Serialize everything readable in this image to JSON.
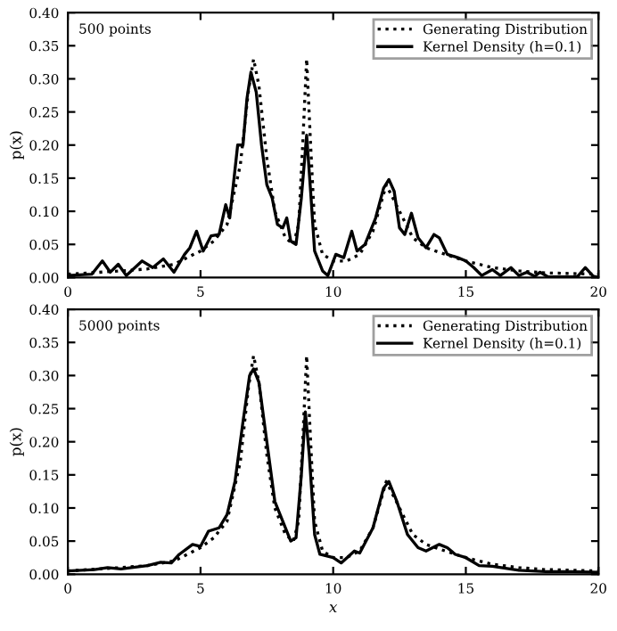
{
  "chart_data": [
    {
      "type": "line",
      "ylabel": "p(x)",
      "annotations": [
        "500 points"
      ],
      "legend": "top right",
      "xlim": [
        0,
        20
      ],
      "ylim": [
        0,
        0.4
      ],
      "xticks": [
        0,
        5,
        10,
        15,
        20
      ],
      "yticks": [
        {
          "value": 0,
          "label": "0.00"
        },
        {
          "value": 0.05,
          "label": "0.05"
        },
        {
          "value": 0.1,
          "label": "0.10"
        },
        {
          "value": 0.15,
          "label": "0.15"
        },
        {
          "value": 0.2,
          "label": "0.20"
        },
        {
          "value": 0.25,
          "label": "0.25"
        },
        {
          "value": 0.3,
          "label": "0.30"
        },
        {
          "value": 0.35,
          "label": "0.35"
        },
        {
          "value": 0.4,
          "label": "0.40"
        }
      ],
      "series": [
        {
          "name": "Generating Distribution",
          "color": "#000000",
          "line_style": "dotted",
          "x": [
            0,
            2,
            3,
            4,
            5,
            5.5,
            6,
            6.5,
            6.8,
            7.0,
            7.2,
            7.5,
            7.8,
            8.2,
            8.5,
            8.7,
            8.85,
            9.0,
            9.15,
            9.3,
            9.6,
            10,
            10.5,
            11,
            11.5,
            12,
            12.5,
            13,
            13.5,
            14,
            15,
            16,
            17,
            18,
            20
          ],
          "values": [
            0.005,
            0.01,
            0.013,
            0.02,
            0.04,
            0.055,
            0.08,
            0.17,
            0.28,
            0.33,
            0.29,
            0.18,
            0.1,
            0.06,
            0.05,
            0.08,
            0.2,
            0.33,
            0.2,
            0.08,
            0.035,
            0.025,
            0.025,
            0.035,
            0.07,
            0.14,
            0.1,
            0.06,
            0.045,
            0.038,
            0.025,
            0.015,
            0.01,
            0.007,
            0.005
          ]
        },
        {
          "name": "Kernel Density (h=0.1)",
          "color": "#000000",
          "line_style": "solid",
          "x": [
            0,
            0.9,
            1.3,
            1.6,
            1.9,
            2.2,
            2.8,
            3.2,
            3.6,
            4.0,
            4.4,
            4.6,
            4.85,
            5.1,
            5.4,
            5.7,
            5.95,
            6.1,
            6.4,
            6.6,
            6.75,
            6.9,
            7.1,
            7.3,
            7.5,
            7.7,
            7.9,
            8.1,
            8.25,
            8.4,
            8.6,
            8.8,
            9.0,
            9.15,
            9.3,
            9.6,
            9.8,
            10.1,
            10.4,
            10.7,
            10.9,
            11.2,
            11.6,
            11.9,
            12.1,
            12.3,
            12.5,
            12.7,
            12.95,
            13.2,
            13.5,
            13.8,
            14.0,
            14.3,
            14.7,
            15.0,
            15.3,
            15.6,
            16,
            16.3,
            16.7,
            17.0,
            17.3,
            17.6,
            17.8,
            18.1,
            19.2,
            19.5,
            19.8,
            20
          ],
          "values": [
            0.003,
            0.005,
            0.025,
            0.008,
            0.02,
            0.003,
            0.025,
            0.015,
            0.028,
            0.008,
            0.035,
            0.045,
            0.07,
            0.04,
            0.063,
            0.065,
            0.11,
            0.09,
            0.2,
            0.2,
            0.27,
            0.31,
            0.28,
            0.2,
            0.14,
            0.12,
            0.08,
            0.075,
            0.09,
            0.055,
            0.05,
            0.12,
            0.215,
            0.13,
            0.04,
            0.01,
            0.003,
            0.035,
            0.03,
            0.07,
            0.04,
            0.05,
            0.09,
            0.135,
            0.148,
            0.13,
            0.075,
            0.065,
            0.097,
            0.06,
            0.045,
            0.065,
            0.06,
            0.035,
            0.03,
            0.025,
            0.015,
            0.003,
            0.012,
            0.003,
            0.015,
            0.003,
            0.008,
            0.002,
            0.008,
            0.001,
            0.001,
            0.015,
            0.002,
            0.0
          ]
        }
      ]
    },
    {
      "type": "line",
      "xlabel": "x",
      "ylabel": "p(x)",
      "annotations": [
        "5000 points"
      ],
      "legend": "top right",
      "xlim": [
        0,
        20
      ],
      "ylim": [
        0,
        0.4
      ],
      "xticks": [
        0,
        5,
        10,
        15,
        20
      ],
      "yticks": [
        {
          "value": 0,
          "label": "0.00"
        },
        {
          "value": 0.05,
          "label": "0.05"
        },
        {
          "value": 0.1,
          "label": "0.10"
        },
        {
          "value": 0.15,
          "label": "0.15"
        },
        {
          "value": 0.2,
          "label": "0.20"
        },
        {
          "value": 0.25,
          "label": "0.25"
        },
        {
          "value": 0.3,
          "label": "0.30"
        },
        {
          "value": 0.35,
          "label": "0.35"
        },
        {
          "value": 0.4,
          "label": "0.40"
        }
      ],
      "series": [
        {
          "name": "Generating Distribution",
          "color": "#000000",
          "line_style": "dotted",
          "x": [
            0,
            2,
            3,
            4,
            5,
            5.5,
            6,
            6.5,
            6.8,
            7.0,
            7.2,
            7.5,
            7.8,
            8.2,
            8.5,
            8.7,
            8.85,
            9.0,
            9.15,
            9.3,
            9.6,
            10,
            10.5,
            11,
            11.5,
            12,
            12.5,
            13,
            13.5,
            14,
            15,
            16,
            17,
            18,
            20
          ],
          "values": [
            0.005,
            0.01,
            0.013,
            0.02,
            0.04,
            0.055,
            0.08,
            0.17,
            0.28,
            0.33,
            0.29,
            0.18,
            0.1,
            0.06,
            0.05,
            0.08,
            0.2,
            0.33,
            0.2,
            0.08,
            0.035,
            0.025,
            0.025,
            0.035,
            0.07,
            0.14,
            0.1,
            0.06,
            0.045,
            0.038,
            0.025,
            0.015,
            0.01,
            0.007,
            0.005
          ]
        },
        {
          "name": "Kernel Density (h=0.1)",
          "color": "#000000",
          "line_style": "solid",
          "x": [
            0,
            1,
            1.5,
            2,
            3,
            3.5,
            3.9,
            4.2,
            4.7,
            5.0,
            5.3,
            5.7,
            6.0,
            6.3,
            6.6,
            6.85,
            7.0,
            7.2,
            7.5,
            7.8,
            8.1,
            8.4,
            8.6,
            8.8,
            8.95,
            9.1,
            9.3,
            9.5,
            10.0,
            10.3,
            10.8,
            11.0,
            11.5,
            11.9,
            12.1,
            12.4,
            12.8,
            13.2,
            13.5,
            14.0,
            14.3,
            14.6,
            15.0,
            15.5,
            16,
            17,
            18,
            19,
            20
          ],
          "values": [
            0.005,
            0.007,
            0.01,
            0.008,
            0.013,
            0.018,
            0.017,
            0.03,
            0.045,
            0.042,
            0.065,
            0.07,
            0.09,
            0.14,
            0.23,
            0.3,
            0.31,
            0.29,
            0.2,
            0.11,
            0.08,
            0.05,
            0.055,
            0.15,
            0.245,
            0.18,
            0.06,
            0.03,
            0.025,
            0.017,
            0.035,
            0.032,
            0.07,
            0.13,
            0.14,
            0.11,
            0.06,
            0.04,
            0.035,
            0.045,
            0.04,
            0.03,
            0.025,
            0.013,
            0.012,
            0.006,
            0.004,
            0.004,
            0.003
          ]
        }
      ]
    }
  ]
}
